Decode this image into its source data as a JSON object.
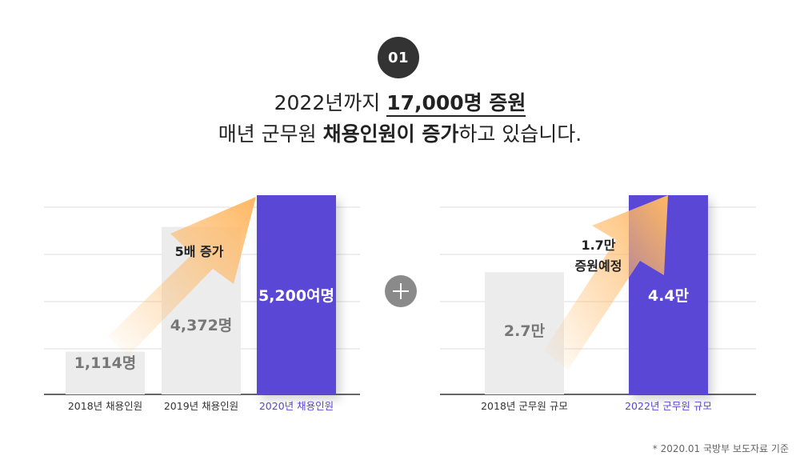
{
  "badge": "01",
  "headline": {
    "l1_pre": "2022년까지 ",
    "l1_bold": "17,000명 증원",
    "l2_pre": "매년 군무원 ",
    "l2_bold1": "채용인원이 증가",
    "l2_mid": "하고 있습니다."
  },
  "colors": {
    "bar_gray": "#ececec",
    "bar_purple": "#5a46d6",
    "arrow_orange": "#ffb864",
    "highlight_text": "#5a46d6",
    "gridline": "#dddddd"
  },
  "chart_data": [
    {
      "type": "bar",
      "categories": [
        "2018년 채용인원",
        "2019년 채용인원",
        "2020년 채용인원"
      ],
      "values": [
        1114,
        4372,
        5200
      ],
      "data_labels": [
        "1,114명",
        "4,372명",
        "5,200여명"
      ],
      "highlight_index": 2,
      "annotation": "5배 증가",
      "ylim": [
        0,
        5200
      ]
    },
    {
      "type": "bar",
      "categories": [
        "2018년 군무원 규모",
        "2022년 군무원 규모"
      ],
      "values": [
        2.7,
        4.4
      ],
      "data_labels": [
        "2.7만",
        "4.4만"
      ],
      "highlight_index": 1,
      "annotation": [
        "1.7만",
        "증원예정"
      ],
      "ylim": [
        0,
        4.4
      ]
    }
  ],
  "source_note": "* 2020.01 국방부 보도자료 기준"
}
